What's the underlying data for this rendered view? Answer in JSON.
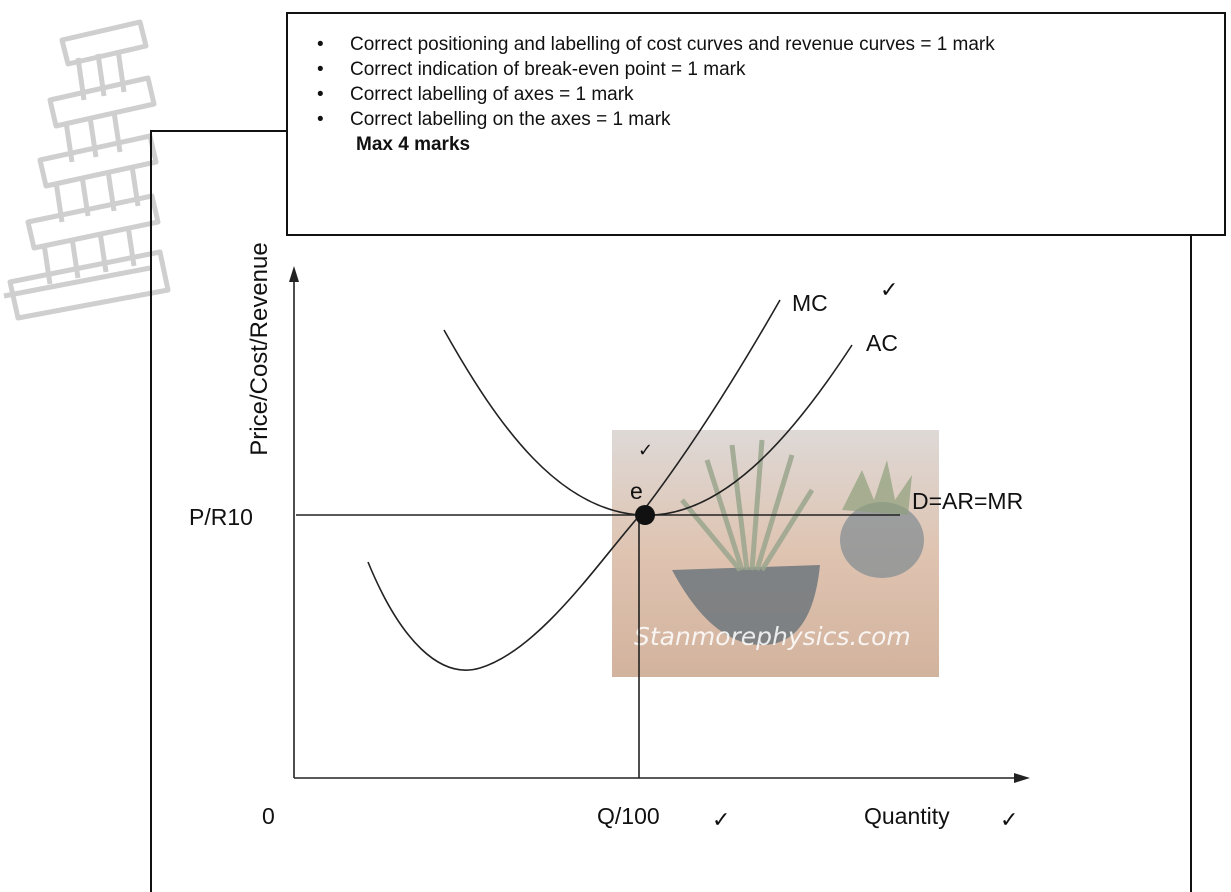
{
  "marking": {
    "bullets": [
      "Correct positioning and labelling of cost curves and revenue curves = 1 mark",
      "Correct indication of break-even point = 1 mark",
      "Correct labelling of axes = 1 mark",
      "Correct labelling on the axes = 1 mark"
    ],
    "max": "Max 4 marks"
  },
  "chart_data": {
    "type": "line",
    "title": "",
    "ylabel": "Price/Cost/Revenue",
    "xlabel": "Quantity",
    "origin_label": "0",
    "x_tick_label": "Q/100",
    "y_tick_label": "P/R10",
    "point_label": "e",
    "series": [
      {
        "name": "MC"
      },
      {
        "name": "AC"
      },
      {
        "name": "D=AR=MR"
      }
    ]
  },
  "watermark": "Stanmorephysics.com",
  "tick": "✓"
}
